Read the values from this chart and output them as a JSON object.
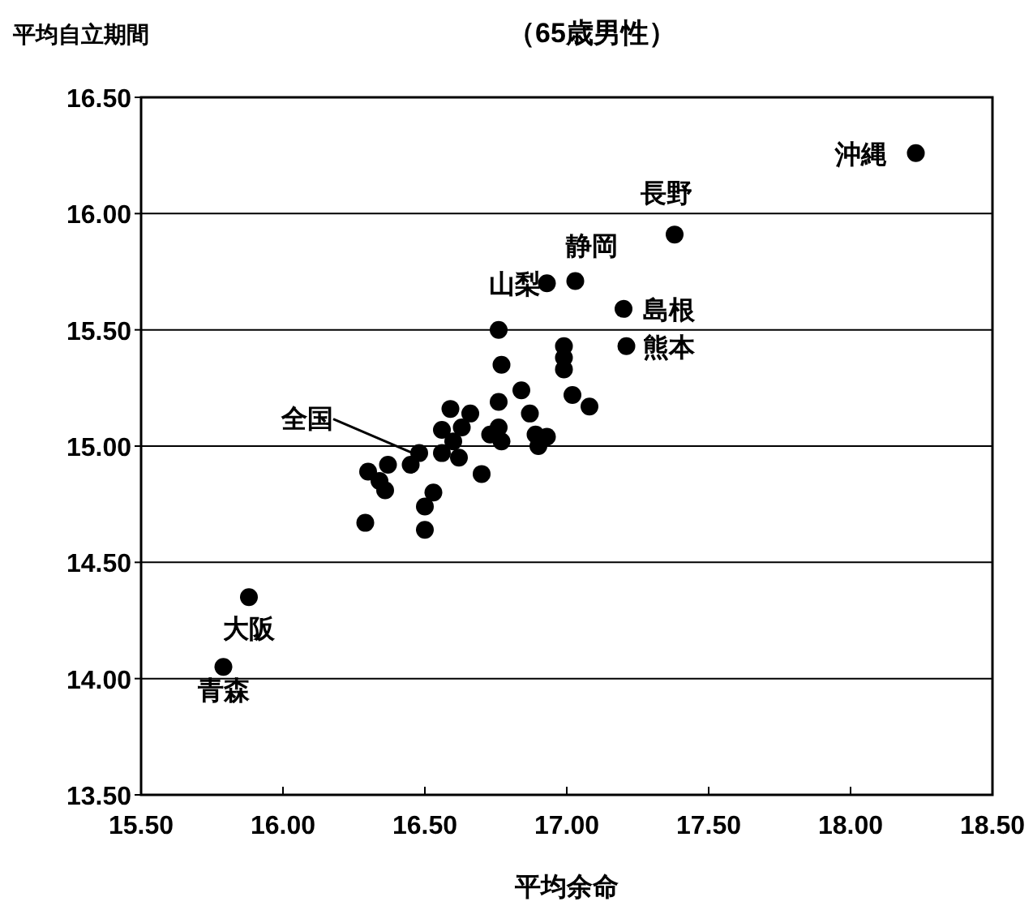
{
  "chart_data": {
    "type": "scatter",
    "title": "（65歳男性）",
    "xlabel": "平均余命",
    "ylabel": "平均自立期間",
    "x": [
      18.23,
      17.38,
      17.03,
      16.93,
      17.2,
      17.21,
      16.76,
      16.77,
      16.99,
      16.99,
      16.99,
      17.02,
      17.08,
      16.84,
      16.76,
      16.87,
      16.59,
      16.66,
      16.56,
      16.63,
      16.6,
      16.62,
      16.56,
      16.76,
      16.73,
      16.77,
      16.89,
      16.93,
      16.9,
      16.7,
      16.48,
      16.45,
      16.3,
      16.37,
      16.36,
      16.34,
      16.53,
      16.5,
      16.5,
      16.29,
      15.88,
      15.79
    ],
    "values": [
      16.26,
      15.91,
      15.71,
      15.7,
      15.59,
      15.43,
      15.5,
      15.35,
      15.43,
      15.38,
      15.33,
      15.22,
      15.17,
      15.24,
      15.19,
      15.14,
      15.16,
      15.14,
      15.07,
      15.08,
      15.02,
      14.95,
      14.97,
      15.08,
      15.05,
      15.02,
      15.05,
      15.04,
      15.0,
      14.88,
      14.97,
      14.92,
      14.89,
      14.92,
      14.81,
      14.85,
      14.8,
      14.74,
      14.64,
      14.67,
      14.35,
      14.05
    ],
    "color": "#000000",
    "marker": "circle",
    "grid": "y",
    "xlim": [
      15.5,
      18.5
    ],
    "ylim": [
      13.5,
      16.5
    ],
    "xticks": [
      {
        "value": 15.5,
        "label": "15.50"
      },
      {
        "value": 16.0,
        "label": "16.00"
      },
      {
        "value": 16.5,
        "label": "16.50"
      },
      {
        "value": 17.0,
        "label": "17.00"
      },
      {
        "value": 17.5,
        "label": "17.50"
      },
      {
        "value": 18.0,
        "label": "18.00"
      },
      {
        "value": 18.5,
        "label": "18.50"
      }
    ],
    "yticks": [
      {
        "value": 13.5,
        "label": "13.50"
      },
      {
        "value": 14.0,
        "label": "14.00"
      },
      {
        "value": 14.5,
        "label": "14.50"
      },
      {
        "value": 15.0,
        "label": "15.00"
      },
      {
        "value": 15.5,
        "label": "15.50"
      },
      {
        "value": 16.0,
        "label": "16.00"
      },
      {
        "value": 16.5,
        "label": "16.50"
      }
    ],
    "annotations": [
      {
        "text": "沖縄",
        "x": 18.23,
        "y": 16.26
      },
      {
        "text": "長野",
        "x": 17.38,
        "y": 15.91
      },
      {
        "text": "静岡",
        "x": 17.03,
        "y": 15.71
      },
      {
        "text": "山梨",
        "x": 16.93,
        "y": 15.7
      },
      {
        "text": "島根",
        "x": 17.2,
        "y": 15.59
      },
      {
        "text": "熊本",
        "x": 17.21,
        "y": 15.43
      },
      {
        "text": "全国",
        "x": 16.48,
        "y": 14.97
      },
      {
        "text": "大阪",
        "x": 15.88,
        "y": 14.35
      },
      {
        "text": "青森",
        "x": 15.79,
        "y": 14.05
      }
    ]
  }
}
